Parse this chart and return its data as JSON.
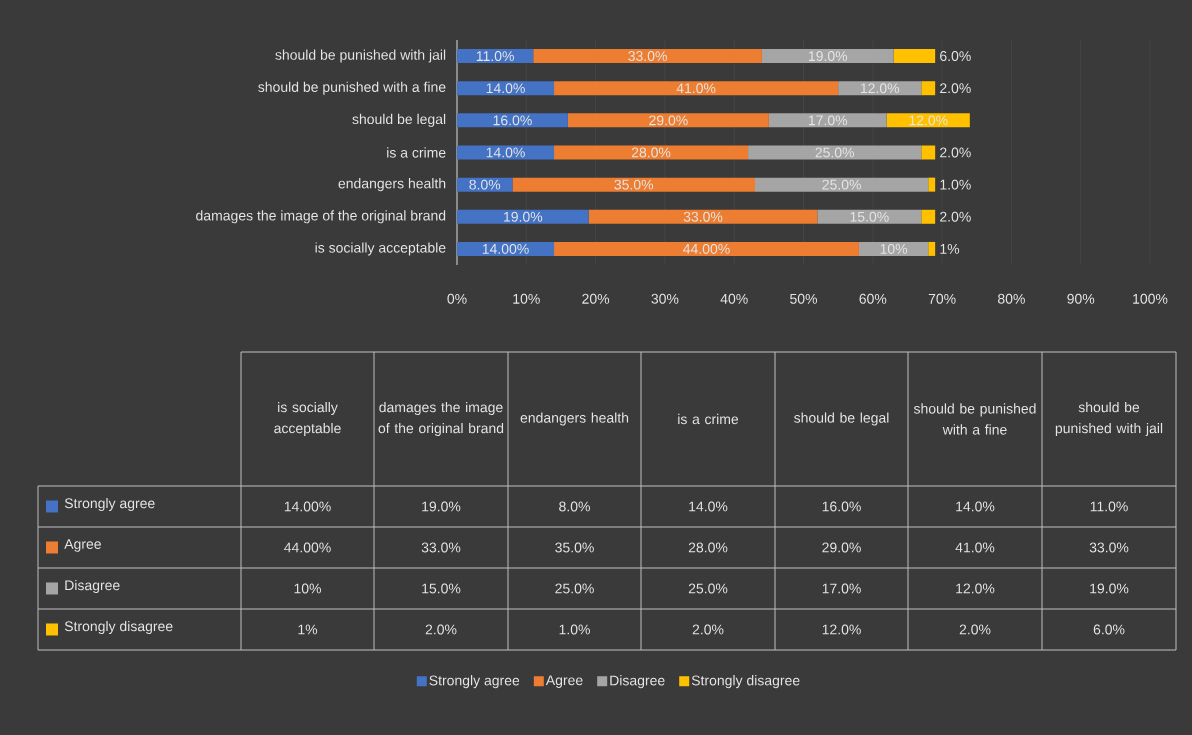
{
  "chart_data": {
    "type": "bar",
    "orientation": "horizontal",
    "stacked": true,
    "categories": [
      "should be punished with jail",
      "should be punished with a fine",
      "should be legal",
      "is a crime",
      "endangers health",
      "damages the image of the original brand",
      "is socially acceptable"
    ],
    "series": [
      {
        "name": "Strongly agree",
        "color": "#4472c4",
        "values": [
          11,
          14,
          16,
          14,
          8,
          19,
          14
        ],
        "value_labels": [
          "11.0%",
          "14.0%",
          "16.0%",
          "14.0%",
          "8.0%",
          "19.0%",
          "14.00%"
        ]
      },
      {
        "name": "Agree",
        "color": "#ed7d31",
        "values": [
          33,
          41,
          29,
          28,
          35,
          33,
          44
        ],
        "value_labels": [
          "33.0%",
          "41.0%",
          "29.0%",
          "28.0%",
          "35.0%",
          "33.0%",
          "44.00%"
        ]
      },
      {
        "name": "Disagree",
        "color": "#a5a5a5",
        "values": [
          19,
          12,
          17,
          25,
          25,
          15,
          10
        ],
        "value_labels": [
          "19.0%",
          "12.0%",
          "17.0%",
          "25.0%",
          "25.0%",
          "15.0%",
          "10%"
        ]
      },
      {
        "name": "Strongly disagree",
        "color": "#ffc000",
        "values": [
          6,
          2,
          12,
          2,
          1,
          2,
          1
        ],
        "value_labels": [
          "6.0%",
          "2.0%",
          "12.0%",
          "2.0%",
          "1.0%",
          "2.0%",
          "1%"
        ]
      }
    ],
    "xlim": [
      0,
      100
    ],
    "xticks": [
      {
        "value": 0,
        "label": "0%"
      },
      {
        "value": 10,
        "label": "10%"
      },
      {
        "value": 20,
        "label": "20%"
      },
      {
        "value": 30,
        "label": "30%"
      },
      {
        "value": 40,
        "label": "40%"
      },
      {
        "value": 50,
        "label": "50%"
      },
      {
        "value": 60,
        "label": "60%"
      },
      {
        "value": 70,
        "label": "70%"
      },
      {
        "value": 80,
        "label": "80%"
      },
      {
        "value": 90,
        "label": "90%"
      },
      {
        "value": 100,
        "label": "100%"
      }
    ],
    "grid": "x",
    "legend": "bottom"
  }
}
